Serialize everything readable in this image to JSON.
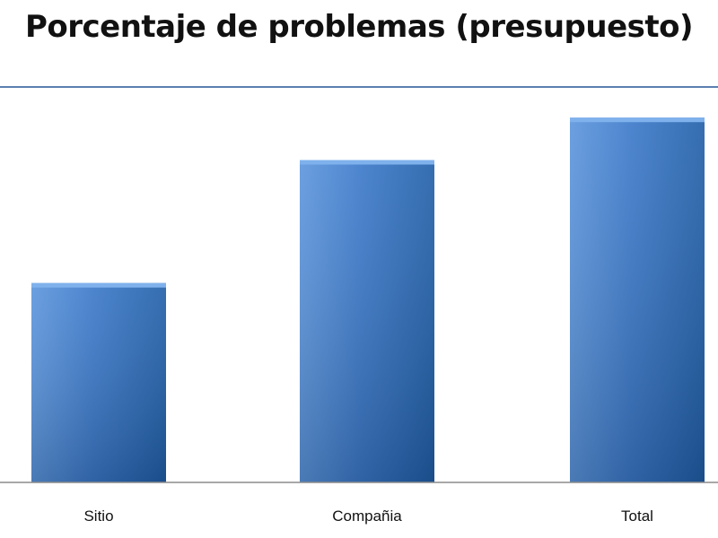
{
  "chart_data": {
    "type": "bar",
    "title": "Porcentaje de problemas (presupuesto)",
    "xlabel": "",
    "ylabel": "",
    "categories": [
      "Sitio",
      "Compañia",
      "Total"
    ],
    "values": [
      47,
      76,
      86
    ],
    "ylim": [
      0,
      100
    ],
    "grid": false,
    "legend": "none",
    "colors": {
      "bar_light": "#5b95dd",
      "bar": "#3a78c9",
      "bar_dark": "#1f5ea8",
      "bar_top": "#7fb1ec",
      "axis": "#8c8c8c"
    }
  }
}
